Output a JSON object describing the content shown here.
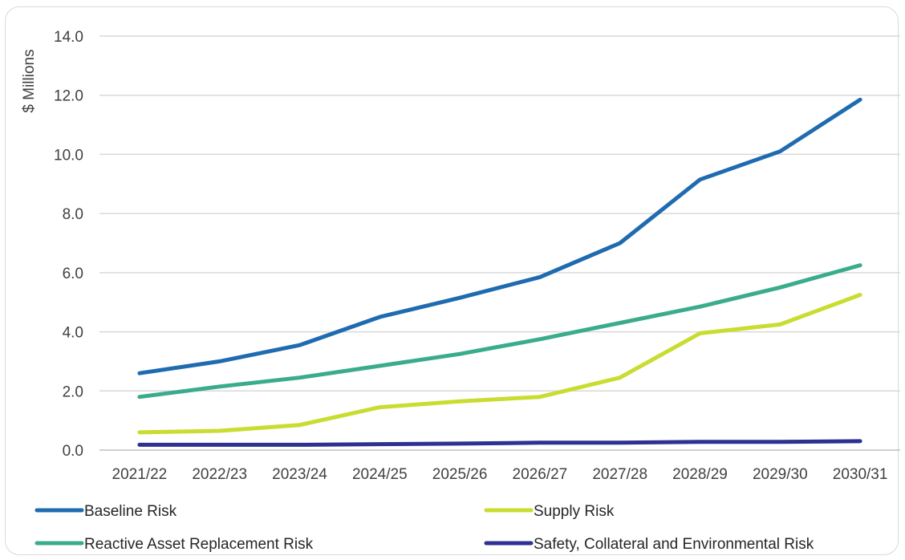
{
  "chart_data": {
    "type": "line",
    "title": "",
    "xlabel": "",
    "ylabel": "$ Millions",
    "ylim": [
      0,
      14
    ],
    "yticks": [
      "0.0",
      "2.0",
      "4.0",
      "6.0",
      "8.0",
      "10.0",
      "12.0",
      "14.0"
    ],
    "grid": "horizontal",
    "legend_position": "bottom",
    "categories": [
      "2021/22",
      "2022/23",
      "2023/24",
      "2024/25",
      "2025/26",
      "2026/27",
      "2027/28",
      "2028/29",
      "2029/30",
      "2030/31"
    ],
    "series": [
      {
        "name": "Baseline Risk",
        "color": "#1f6bb0",
        "values": [
          2.6,
          3.0,
          3.55,
          4.5,
          5.15,
          5.85,
          7.0,
          9.15,
          10.1,
          11.85
        ]
      },
      {
        "name": "Supply Risk",
        "color": "#c9dc30",
        "values": [
          0.6,
          0.65,
          0.85,
          1.45,
          1.65,
          1.8,
          2.45,
          3.95,
          4.25,
          5.25
        ]
      },
      {
        "name": "Reactive Asset Replacement Risk",
        "color": "#3aac8c",
        "values": [
          1.8,
          2.15,
          2.45,
          2.85,
          3.25,
          3.75,
          4.3,
          4.85,
          5.5,
          6.25
        ]
      },
      {
        "name": "Safety, Collateral and Environmental Risk",
        "color": "#2e3192",
        "values": [
          0.18,
          0.18,
          0.18,
          0.2,
          0.22,
          0.25,
          0.25,
          0.28,
          0.28,
          0.3
        ]
      }
    ]
  }
}
